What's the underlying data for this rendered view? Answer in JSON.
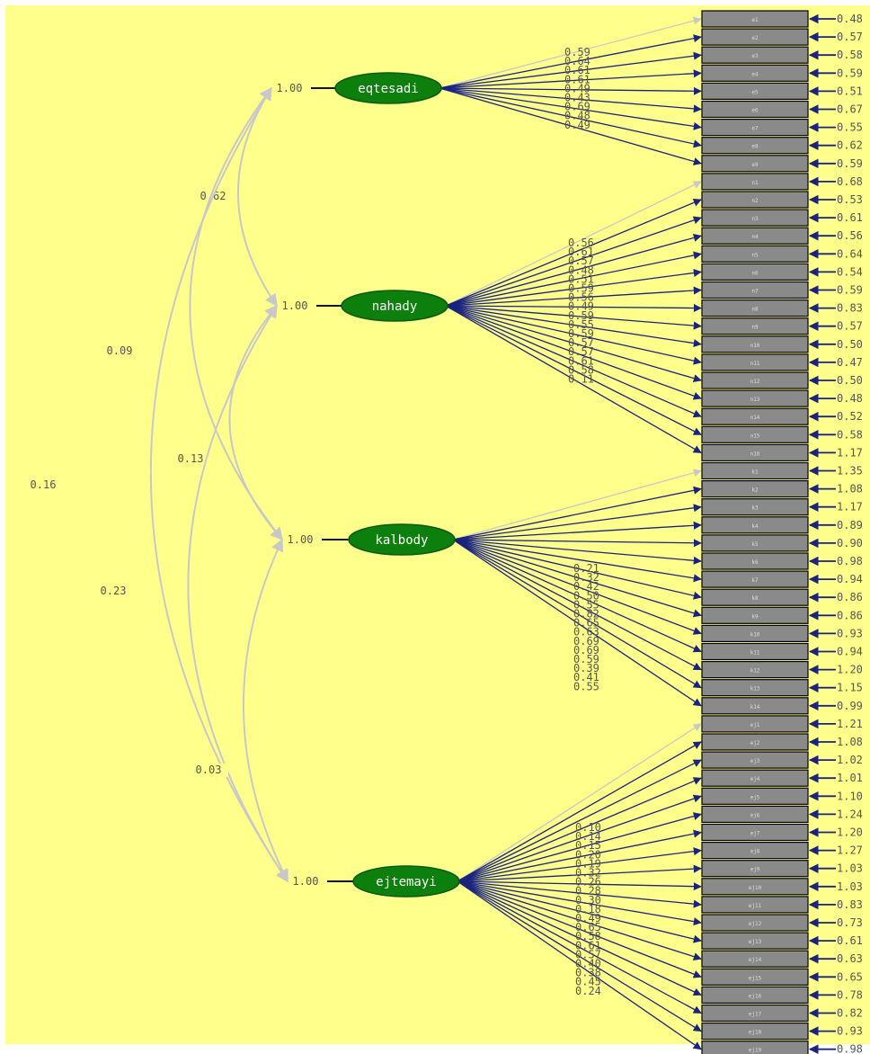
{
  "diagram": {
    "colors": {
      "background": "#ffff8c",
      "latent_fill": "#0d7f0d",
      "latent_stroke": "#0a5a0a",
      "latent_text": "#ffffff",
      "indicator_fill": "#8a8a8a",
      "indicator_stroke": "#000000",
      "arrow_dark": "#1a237e",
      "arrow_light": "#c8c8c8",
      "label": "#555555"
    },
    "latents": [
      {
        "name": "eqtesadi",
        "variance": "1.00",
        "loadings": [
          "",
          "0.59",
          "0.64",
          "0.61",
          "0.61",
          "0.49",
          "0.43",
          "0.69",
          "0.48",
          "0.49"
        ],
        "indicators": [
          "e1",
          "e2",
          "e3",
          "e4",
          "e5",
          "e6",
          "e7",
          "e8",
          "e9"
        ],
        "errors": [
          "0.48",
          "0.57",
          "0.58",
          "0.59",
          "0.51",
          "0.67",
          "0.55",
          "0.62",
          "0.59"
        ]
      },
      {
        "name": "nahady",
        "variance": "1.00",
        "loadings": [
          "",
          "0.56",
          "0.61",
          "0.57",
          "0.48",
          "0.51",
          "0.59",
          "0.56",
          "0.49",
          "0.59",
          "0.55",
          "0.59",
          "0.57",
          "0.57",
          "0.61",
          "0.58",
          "0.11"
        ],
        "indicators": [
          "n1",
          "n2",
          "n3",
          "n4",
          "n5",
          "n6",
          "n7",
          "n8",
          "n9",
          "n10",
          "n11",
          "n12",
          "n13",
          "n14",
          "n15",
          "n16"
        ],
        "errors": [
          "0.68",
          "0.53",
          "0.61",
          "0.56",
          "0.64",
          "0.54",
          "0.59",
          "0.83",
          "0.57",
          "0.50",
          "0.47",
          "0.50",
          "0.48",
          "0.52",
          "0.58",
          "1.17"
        ]
      },
      {
        "name": "kalbody",
        "variance": "1.00",
        "loadings": [
          "",
          "0.21",
          "0.32",
          "0.42",
          "0.50",
          "0.55",
          "0.82",
          "0.65",
          "0.63",
          "0.69",
          "0.69",
          "0.59",
          "0.39",
          "0.41",
          "0.55"
        ],
        "indicators": [
          "k1",
          "k2",
          "k3",
          "k4",
          "k5",
          "k6",
          "k7",
          "k8",
          "k9",
          "k10",
          "k11",
          "k12",
          "k13",
          "k14"
        ],
        "errors": [
          "1.35",
          "1.08",
          "1.17",
          "0.89",
          "0.90",
          "0.98",
          "0.94",
          "0.86",
          "0.86",
          "0.93",
          "0.94",
          "1.20",
          "1.15",
          "0.99"
        ]
      },
      {
        "name": "ejtemayi",
        "variance": "1.00",
        "loadings": [
          "",
          "0.10",
          "0.14",
          "0.15",
          "0.20",
          "0.19",
          "0.32",
          "0.26",
          "0.28",
          "0.30",
          "0.18",
          "0.49",
          "0.65",
          "0.58",
          "0.61",
          "0.57",
          "0.40",
          "0.38",
          "0.45",
          "0.24"
        ],
        "indicators": [
          "ej1",
          "ej2",
          "ej3",
          "ej4",
          "ej5",
          "ej6",
          "ej7",
          "ej8",
          "ej9",
          "ej10",
          "ej11",
          "ej12",
          "ej13",
          "ej14",
          "ej15",
          "ej16",
          "ej17",
          "ej18",
          "ej19"
        ],
        "errors": [
          "1.21",
          "1.08",
          "1.02",
          "1.01",
          "1.10",
          "1.24",
          "1.20",
          "1.27",
          "1.03",
          "1.03",
          "0.83",
          "0.73",
          "0.61",
          "0.63",
          "0.65",
          "0.78",
          "0.82",
          "0.93",
          "0.98"
        ]
      }
    ],
    "covariances": [
      {
        "from": 0,
        "to": 1,
        "value": "0.62"
      },
      {
        "from": 0,
        "to": 2,
        "value": "0.09"
      },
      {
        "from": 0,
        "to": 3,
        "value": "0.16"
      },
      {
        "from": 1,
        "to": 2,
        "value": "0.13"
      },
      {
        "from": 1,
        "to": 3,
        "value": "0.23"
      },
      {
        "from": 2,
        "to": 3,
        "value": "0.03"
      }
    ]
  }
}
